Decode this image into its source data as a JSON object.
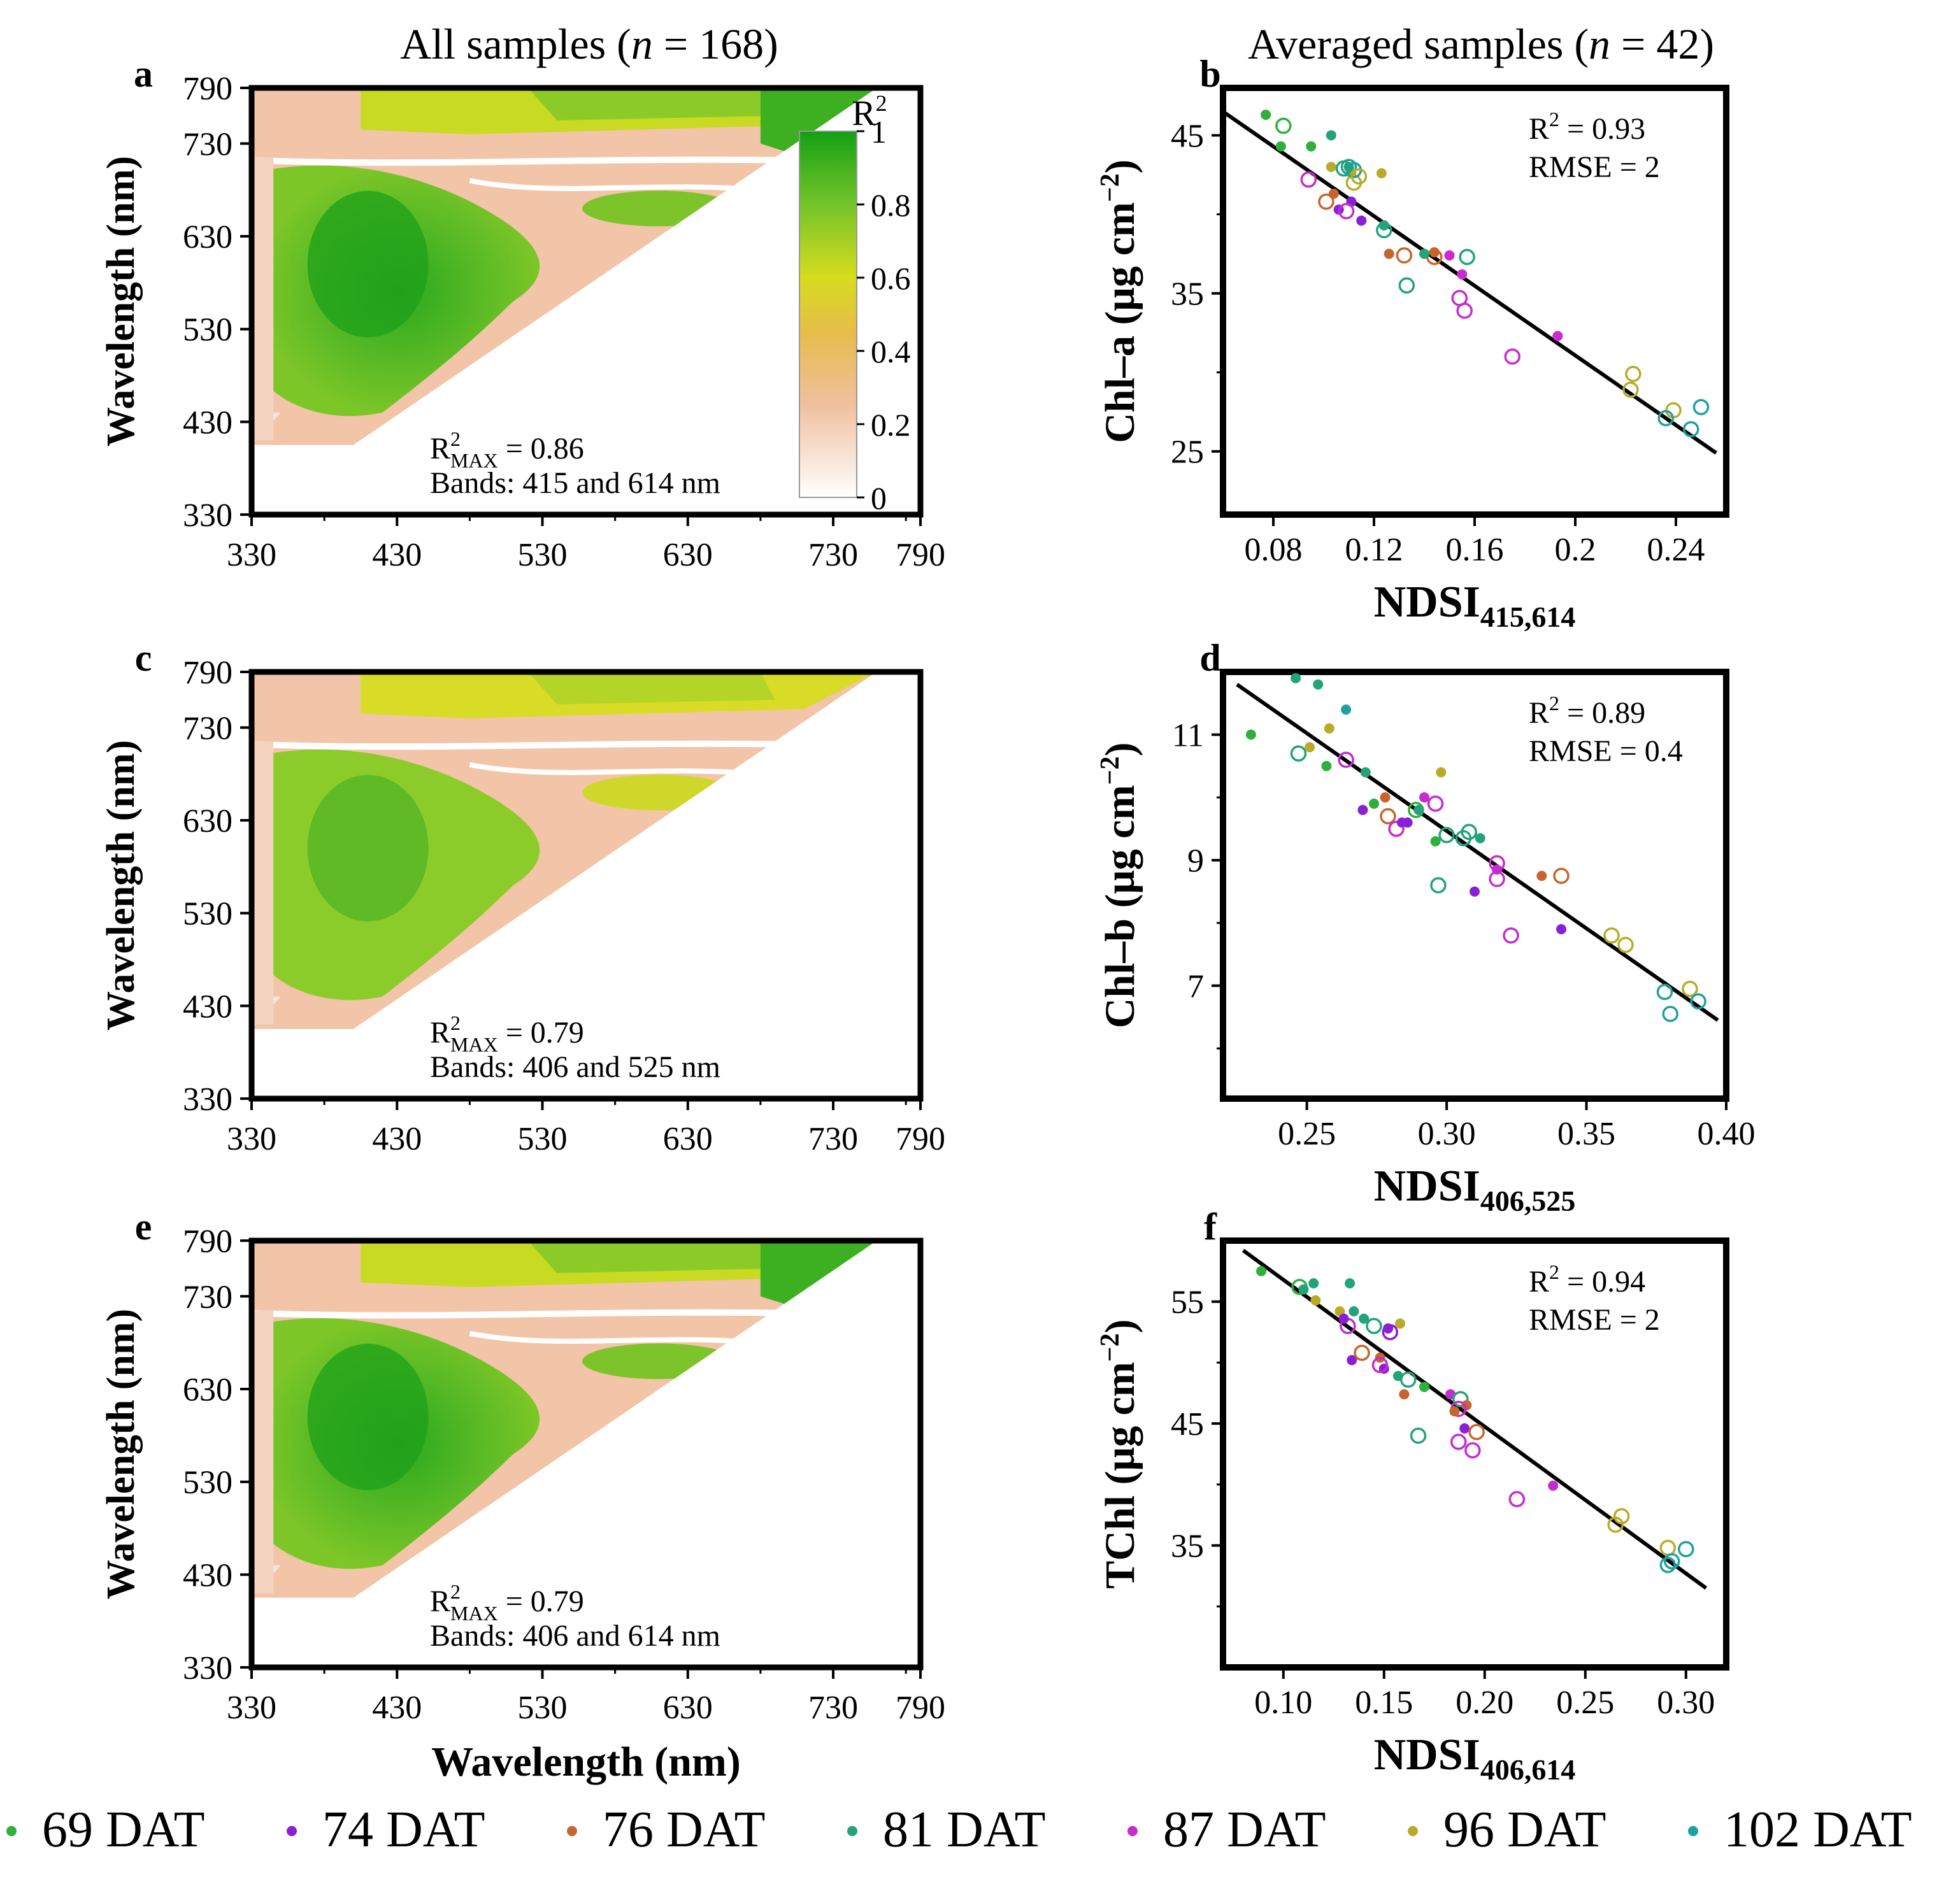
{
  "column_titles": {
    "left": {
      "prefix": "All samples (",
      "n": "n",
      "suffix": " = 168)"
    },
    "right": {
      "prefix": "Averaged samples (",
      "n": "n",
      "suffix": " = 42)"
    }
  },
  "colors": {
    "dat69": "#2fb03a",
    "dat74": "#8b1fd6",
    "dat76": "#c8642e",
    "dat81": "#22a37a",
    "dat87": "#c62ccf",
    "dat96": "#b9ab28",
    "dat102": "#20a0a0",
    "heat_low": "#ffffff",
    "heat_mid1": "#f0c8a0",
    "heat_mid2": "#d8d822",
    "heat_high": "#16a016"
  },
  "legend": [
    {
      "label": "69 DAT",
      "color": "#2fb03a"
    },
    {
      "label": "74 DAT",
      "color": "#8b1fd6"
    },
    {
      "label": "76 DAT",
      "color": "#c8642e"
    },
    {
      "label": "81 DAT",
      "color": "#22a37a"
    },
    {
      "label": "87 DAT",
      "color": "#c62ccf"
    },
    {
      "label": "96 DAT",
      "color": "#b9ab28"
    },
    {
      "label": "102 DAT",
      "color": "#20a0a0"
    }
  ],
  "colorbar": {
    "title": "R",
    "title_sup": "2",
    "ticks": [
      "1",
      "0.8",
      "0.6",
      "0.4",
      "0.2",
      "0"
    ],
    "range": [
      0,
      1
    ]
  },
  "chart_data": [
    {
      "panel": "a",
      "type": "heatmap",
      "xlabel": "",
      "ylabel": "Wavelength (nm)",
      "xlim": [
        330,
        790
      ],
      "ylim": [
        330,
        790
      ],
      "xticks": [
        "330",
        "430",
        "530",
        "630",
        "730",
        "790"
      ],
      "yticks": [
        "330",
        "430",
        "530",
        "630",
        "730",
        "790"
      ],
      "annotation": {
        "r2_label": "R",
        "r2_sup": "2",
        "r2_sub": "MAX",
        "r2_value": " = 0.86",
        "bands": "Bands: 415 and 614 nm"
      },
      "max_r2": 0.86,
      "best_bands": [
        415,
        614
      ]
    },
    {
      "panel": "c",
      "type": "heatmap",
      "xlabel": "",
      "ylabel": "Wavelength (nm)",
      "xlim": [
        330,
        790
      ],
      "ylim": [
        330,
        790
      ],
      "xticks": [
        "330",
        "430",
        "530",
        "630",
        "730",
        "790"
      ],
      "yticks": [
        "330",
        "430",
        "530",
        "630",
        "730",
        "790"
      ],
      "annotation": {
        "r2_label": "R",
        "r2_sup": "2",
        "r2_sub": "MAX",
        "r2_value": " = 0.79",
        "bands": "Bands: 406 and 525 nm"
      },
      "max_r2": 0.79,
      "best_bands": [
        406,
        525
      ]
    },
    {
      "panel": "e",
      "type": "heatmap",
      "xlabel": "Wavelength (nm)",
      "ylabel": "Wavelength (nm)",
      "xlim": [
        330,
        790
      ],
      "ylim": [
        330,
        790
      ],
      "xticks": [
        "330",
        "430",
        "530",
        "630",
        "730",
        "790"
      ],
      "yticks": [
        "330",
        "430",
        "530",
        "630",
        "730",
        "790"
      ],
      "annotation": {
        "r2_label": "R",
        "r2_sup": "2",
        "r2_sub": "MAX",
        "r2_value": " = 0.79",
        "bands": "Bands: 406 and 614 nm"
      },
      "max_r2": 0.79,
      "best_bands": [
        406,
        614
      ]
    },
    {
      "panel": "b",
      "type": "scatter",
      "xlabel_main": "NDSI",
      "xlabel_sub": "415,614",
      "ylabel_main": "Chl–a (μg cm",
      "ylabel_sup": "−2",
      "ylabel_end": ")",
      "xlim": [
        0.06,
        0.26
      ],
      "ylim": [
        21,
        48
      ],
      "xticks": [
        0.08,
        0.12,
        0.16,
        0.2,
        0.24
      ],
      "xtick_labels": [
        "0.08",
        "0.12",
        "0.16",
        "0.2",
        "0.24"
      ],
      "yticks": [
        25,
        35,
        45
      ],
      "ytick_labels": [
        "25",
        "35",
        "45"
      ],
      "stats": {
        "r2_label": "R",
        "r2_sup": "2",
        "r2_value": " = 0.93",
        "rmse": "RMSE = 2"
      },
      "fit": [
        [
          0.06,
          46.5
        ],
        [
          0.256,
          24.9
        ]
      ],
      "points": [
        {
          "x": 0.077,
          "y": 46.3,
          "s": 0,
          "f": true
        },
        {
          "x": 0.083,
          "y": 44.3,
          "s": 0,
          "f": true
        },
        {
          "x": 0.095,
          "y": 44.3,
          "s": 0,
          "f": true
        },
        {
          "x": 0.084,
          "y": 45.6,
          "s": 0,
          "f": false
        },
        {
          "x": 0.103,
          "y": 45.0,
          "s": 3,
          "f": true
        },
        {
          "x": 0.11,
          "y": 43.0,
          "s": 6,
          "f": false
        },
        {
          "x": 0.103,
          "y": 43.0,
          "s": 5,
          "f": true
        },
        {
          "x": 0.111,
          "y": 42.6,
          "s": 5,
          "f": true
        },
        {
          "x": 0.11,
          "y": 43.0,
          "s": 3,
          "f": true
        },
        {
          "x": 0.123,
          "y": 42.6,
          "s": 5,
          "f": true
        },
        {
          "x": 0.094,
          "y": 42.2,
          "s": 4,
          "f": false
        },
        {
          "x": 0.112,
          "y": 42.0,
          "s": 5,
          "f": false
        },
        {
          "x": 0.104,
          "y": 41.3,
          "s": 2,
          "f": true
        },
        {
          "x": 0.111,
          "y": 40.8,
          "s": 1,
          "f": true
        },
        {
          "x": 0.101,
          "y": 40.8,
          "s": 2,
          "f": false
        },
        {
          "x": 0.106,
          "y": 40.3,
          "s": 1,
          "f": true
        },
        {
          "x": 0.109,
          "y": 40.2,
          "s": 4,
          "f": false
        },
        {
          "x": 0.115,
          "y": 39.6,
          "s": 1,
          "f": true
        },
        {
          "x": 0.124,
          "y": 39.3,
          "s": 3,
          "f": true
        },
        {
          "x": 0.124,
          "y": 39.0,
          "s": 3,
          "f": false
        },
        {
          "x": 0.126,
          "y": 37.5,
          "s": 2,
          "f": true
        },
        {
          "x": 0.132,
          "y": 37.4,
          "s": 2,
          "f": false
        },
        {
          "x": 0.144,
          "y": 37.3,
          "s": 2,
          "f": false
        },
        {
          "x": 0.15,
          "y": 37.4,
          "s": 4,
          "f": true
        },
        {
          "x": 0.14,
          "y": 37.5,
          "s": 3,
          "f": true
        },
        {
          "x": 0.157,
          "y": 37.3,
          "s": 3,
          "f": false
        },
        {
          "x": 0.155,
          "y": 36.2,
          "s": 4,
          "f": true
        },
        {
          "x": 0.133,
          "y": 35.5,
          "s": 3,
          "f": false
        },
        {
          "x": 0.154,
          "y": 34.7,
          "s": 4,
          "f": false
        },
        {
          "x": 0.156,
          "y": 33.9,
          "s": 4,
          "f": false
        },
        {
          "x": 0.193,
          "y": 32.3,
          "s": 4,
          "f": true
        },
        {
          "x": 0.175,
          "y": 31.0,
          "s": 4,
          "f": false
        },
        {
          "x": 0.223,
          "y": 29.9,
          "s": 5,
          "f": false
        },
        {
          "x": 0.222,
          "y": 28.9,
          "s": 5,
          "f": false
        },
        {
          "x": 0.239,
          "y": 27.6,
          "s": 5,
          "f": false
        },
        {
          "x": 0.236,
          "y": 27.1,
          "s": 6,
          "f": false
        },
        {
          "x": 0.25,
          "y": 27.8,
          "s": 6,
          "f": false
        },
        {
          "x": 0.246,
          "y": 26.4,
          "s": 6,
          "f": false
        },
        {
          "x": 0.112,
          "y": 42.8,
          "s": 6,
          "f": false
        },
        {
          "x": 0.108,
          "y": 42.9,
          "s": 3,
          "f": false
        },
        {
          "x": 0.144,
          "y": 37.6,
          "s": 2,
          "f": true
        },
        {
          "x": 0.114,
          "y": 42.4,
          "s": 5,
          "f": false
        }
      ]
    },
    {
      "panel": "d",
      "type": "scatter",
      "xlabel_main": "NDSI",
      "xlabel_sub": "406,525",
      "ylabel_main": "Chl–b (μg cm",
      "ylabel_sup": "−2",
      "ylabel_end": ")",
      "xlim": [
        0.22,
        0.4
      ],
      "ylim": [
        5.2,
        12.0
      ],
      "xticks": [
        0.25,
        0.3,
        0.35,
        0.4
      ],
      "xtick_labels": [
        "0.25",
        "0.30",
        "0.35",
        "0.40"
      ],
      "yticks": [
        7,
        9,
        11
      ],
      "ytick_labels": [
        "7",
        "9",
        "11"
      ],
      "stats": {
        "r2_label": "R",
        "r2_sup": "2",
        "r2_value": " = 0.89",
        "rmse": "RMSE = 0.4"
      },
      "fit": [
        [
          0.225,
          11.8
        ],
        [
          0.397,
          6.45
        ]
      ],
      "points": [
        {
          "x": 0.246,
          "y": 11.9,
          "s": 3,
          "f": true
        },
        {
          "x": 0.254,
          "y": 11.8,
          "s": 3,
          "f": true
        },
        {
          "x": 0.264,
          "y": 11.4,
          "s": 6,
          "f": true
        },
        {
          "x": 0.23,
          "y": 11.0,
          "s": 0,
          "f": true
        },
        {
          "x": 0.258,
          "y": 11.1,
          "s": 5,
          "f": true
        },
        {
          "x": 0.247,
          "y": 10.7,
          "s": 3,
          "f": false
        },
        {
          "x": 0.251,
          "y": 10.8,
          "s": 5,
          "f": true
        },
        {
          "x": 0.257,
          "y": 10.5,
          "s": 0,
          "f": true
        },
        {
          "x": 0.264,
          "y": 10.6,
          "s": 4,
          "f": false
        },
        {
          "x": 0.271,
          "y": 10.4,
          "s": 3,
          "f": true
        },
        {
          "x": 0.298,
          "y": 10.4,
          "s": 5,
          "f": true
        },
        {
          "x": 0.292,
          "y": 10.0,
          "s": 4,
          "f": true
        },
        {
          "x": 0.27,
          "y": 9.8,
          "s": 1,
          "f": true
        },
        {
          "x": 0.274,
          "y": 9.9,
          "s": 0,
          "f": true
        },
        {
          "x": 0.279,
          "y": 9.7,
          "s": 2,
          "f": false
        },
        {
          "x": 0.282,
          "y": 9.5,
          "s": 4,
          "f": false
        },
        {
          "x": 0.286,
          "y": 9.6,
          "s": 1,
          "f": true
        },
        {
          "x": 0.289,
          "y": 9.8,
          "s": 0,
          "f": false
        },
        {
          "x": 0.296,
          "y": 9.9,
          "s": 4,
          "f": false
        },
        {
          "x": 0.296,
          "y": 9.3,
          "s": 0,
          "f": true
        },
        {
          "x": 0.3,
          "y": 9.4,
          "s": 3,
          "f": false
        },
        {
          "x": 0.306,
          "y": 9.35,
          "s": 3,
          "f": false
        },
        {
          "x": 0.308,
          "y": 9.45,
          "s": 3,
          "f": false
        },
        {
          "x": 0.312,
          "y": 9.35,
          "s": 3,
          "f": true
        },
        {
          "x": 0.297,
          "y": 8.6,
          "s": 3,
          "f": false
        },
        {
          "x": 0.31,
          "y": 8.5,
          "s": 1,
          "f": true
        },
        {
          "x": 0.318,
          "y": 8.95,
          "s": 4,
          "f": false
        },
        {
          "x": 0.318,
          "y": 8.7,
          "s": 4,
          "f": false
        },
        {
          "x": 0.334,
          "y": 8.75,
          "s": 2,
          "f": true
        },
        {
          "x": 0.341,
          "y": 8.75,
          "s": 2,
          "f": false
        },
        {
          "x": 0.341,
          "y": 7.9,
          "s": 1,
          "f": true
        },
        {
          "x": 0.323,
          "y": 7.8,
          "s": 4,
          "f": false
        },
        {
          "x": 0.359,
          "y": 7.8,
          "s": 5,
          "f": false
        },
        {
          "x": 0.364,
          "y": 7.65,
          "s": 5,
          "f": false
        },
        {
          "x": 0.387,
          "y": 6.95,
          "s": 5,
          "f": false
        },
        {
          "x": 0.378,
          "y": 6.9,
          "s": 6,
          "f": false
        },
        {
          "x": 0.39,
          "y": 6.75,
          "s": 6,
          "f": false
        },
        {
          "x": 0.38,
          "y": 6.55,
          "s": 6,
          "f": false
        },
        {
          "x": 0.284,
          "y": 9.6,
          "s": 1,
          "f": true
        },
        {
          "x": 0.318,
          "y": 8.85,
          "s": 4,
          "f": true
        },
        {
          "x": 0.29,
          "y": 9.8,
          "s": 3,
          "f": true
        },
        {
          "x": 0.278,
          "y": 10.0,
          "s": 2,
          "f": true
        }
      ]
    },
    {
      "panel": "f",
      "type": "scatter",
      "xlabel_main": "NDSI",
      "xlabel_sub": "406,614",
      "ylabel_main": "TChl (μg cm",
      "ylabel_sup": "−2",
      "ylabel_end": ")",
      "xlim": [
        0.07,
        0.32
      ],
      "ylim": [
        25,
        60
      ],
      "xticks": [
        0.1,
        0.15,
        0.2,
        0.25,
        0.3
      ],
      "xtick_labels": [
        "0.10",
        "0.15",
        "0.20",
        "0.25",
        "0.30"
      ],
      "yticks": [
        35,
        45,
        55
      ],
      "ytick_labels": [
        "35",
        "45",
        "55"
      ],
      "stats": {
        "r2_label": "R",
        "r2_sup": "2",
        "r2_value": " = 0.94",
        "rmse": "RMSE = 2"
      },
      "fit": [
        [
          0.08,
          59.2
        ],
        [
          0.31,
          31.5
        ]
      ],
      "points": [
        {
          "x": 0.089,
          "y": 57.5,
          "s": 0,
          "f": true
        },
        {
          "x": 0.108,
          "y": 56.2,
          "s": 0,
          "f": false
        },
        {
          "x": 0.115,
          "y": 56.5,
          "s": 3,
          "f": true
        },
        {
          "x": 0.133,
          "y": 56.5,
          "s": 3,
          "f": true
        },
        {
          "x": 0.116,
          "y": 55.1,
          "s": 5,
          "f": true
        },
        {
          "x": 0.128,
          "y": 54.2,
          "s": 5,
          "f": true
        },
        {
          "x": 0.135,
          "y": 54.2,
          "s": 3,
          "f": true
        },
        {
          "x": 0.14,
          "y": 53.6,
          "s": 3,
          "f": true
        },
        {
          "x": 0.145,
          "y": 53.0,
          "s": 3,
          "f": false
        },
        {
          "x": 0.158,
          "y": 53.2,
          "s": 5,
          "f": true
        },
        {
          "x": 0.153,
          "y": 52.5,
          "s": 1,
          "f": false
        },
        {
          "x": 0.132,
          "y": 53.0,
          "s": 4,
          "f": false
        },
        {
          "x": 0.134,
          "y": 50.2,
          "s": 1,
          "f": true
        },
        {
          "x": 0.139,
          "y": 50.8,
          "s": 2,
          "f": false
        },
        {
          "x": 0.148,
          "y": 50.4,
          "s": 2,
          "f": true
        },
        {
          "x": 0.15,
          "y": 49.5,
          "s": 1,
          "f": true
        },
        {
          "x": 0.148,
          "y": 49.8,
          "s": 4,
          "f": false
        },
        {
          "x": 0.157,
          "y": 48.9,
          "s": 3,
          "f": true
        },
        {
          "x": 0.162,
          "y": 48.6,
          "s": 3,
          "f": false
        },
        {
          "x": 0.16,
          "y": 47.4,
          "s": 2,
          "f": true
        },
        {
          "x": 0.183,
          "y": 47.4,
          "s": 4,
          "f": true
        },
        {
          "x": 0.188,
          "y": 47.0,
          "s": 3,
          "f": false
        },
        {
          "x": 0.191,
          "y": 46.5,
          "s": 2,
          "f": true
        },
        {
          "x": 0.187,
          "y": 46.2,
          "s": 4,
          "f": false
        },
        {
          "x": 0.19,
          "y": 44.6,
          "s": 1,
          "f": true
        },
        {
          "x": 0.196,
          "y": 44.3,
          "s": 2,
          "f": false
        },
        {
          "x": 0.167,
          "y": 44.0,
          "s": 3,
          "f": false
        },
        {
          "x": 0.187,
          "y": 43.5,
          "s": 4,
          "f": false
        },
        {
          "x": 0.194,
          "y": 42.8,
          "s": 4,
          "f": false
        },
        {
          "x": 0.234,
          "y": 39.9,
          "s": 4,
          "f": true
        },
        {
          "x": 0.216,
          "y": 38.8,
          "s": 4,
          "f": false
        },
        {
          "x": 0.268,
          "y": 37.4,
          "s": 5,
          "f": false
        },
        {
          "x": 0.265,
          "y": 36.7,
          "s": 5,
          "f": false
        },
        {
          "x": 0.291,
          "y": 34.8,
          "s": 5,
          "f": false
        },
        {
          "x": 0.3,
          "y": 34.7,
          "s": 6,
          "f": false
        },
        {
          "x": 0.293,
          "y": 33.7,
          "s": 6,
          "f": false
        },
        {
          "x": 0.291,
          "y": 33.4,
          "s": 6,
          "f": false
        },
        {
          "x": 0.152,
          "y": 52.8,
          "s": 1,
          "f": true
        },
        {
          "x": 0.13,
          "y": 53.6,
          "s": 1,
          "f": true
        },
        {
          "x": 0.11,
          "y": 56.0,
          "s": 3,
          "f": true
        },
        {
          "x": 0.185,
          "y": 46.0,
          "s": 2,
          "f": true
        },
        {
          "x": 0.17,
          "y": 48.0,
          "s": 0,
          "f": true
        }
      ]
    }
  ]
}
